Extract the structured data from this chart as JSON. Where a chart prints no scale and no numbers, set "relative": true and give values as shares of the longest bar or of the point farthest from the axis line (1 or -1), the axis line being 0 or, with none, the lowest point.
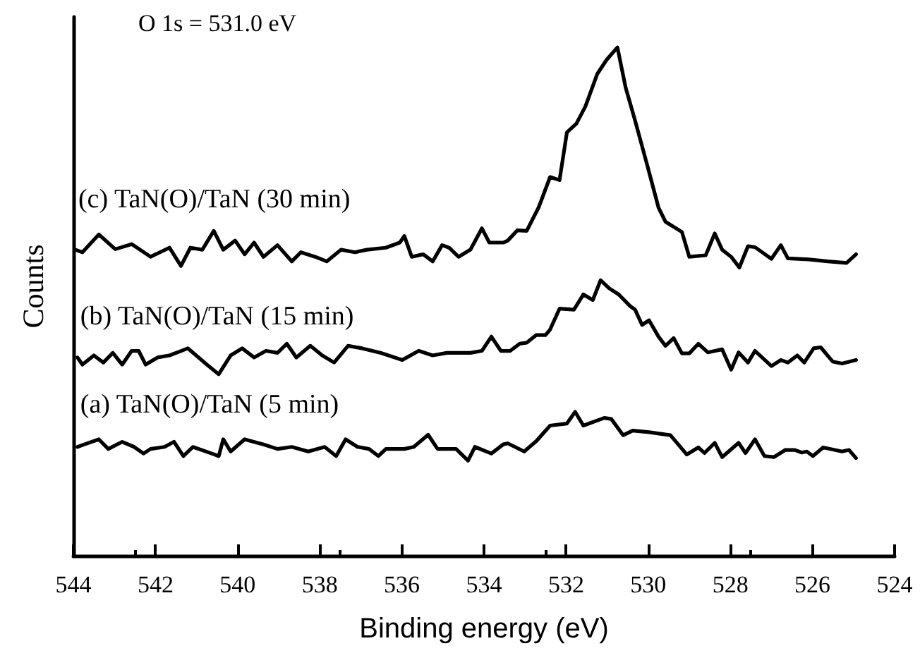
{
  "chart_data": {
    "type": "line",
    "relative": true,
    "xlabel": "Binding energy (eV)",
    "ylabel": "Counts",
    "annotations": [
      "O 1s = 531.0 eV"
    ],
    "xlim": [
      544,
      524
    ],
    "xticks": [
      544,
      542,
      540,
      538,
      536,
      534,
      532,
      530,
      528,
      526,
      524
    ],
    "tick_labels": "x",
    "grid": false,
    "legend": false,
    "marker": "none",
    "line_style": "solid",
    "series": [
      {
        "name": "(c) TaN(O)/TaN (30 min)",
        "color": "#000000",
        "x": [
          543.95,
          543.78,
          543.38,
          542.98,
          542.58,
          542.12,
          541.66,
          541.38,
          541.15,
          540.86,
          540.58,
          540.35,
          540.06,
          539.83,
          539.6,
          539.37,
          539.03,
          538.68,
          538.46,
          538.11,
          537.83,
          537.48,
          537.14,
          536.85,
          536.39,
          536.05,
          535.94,
          535.76,
          535.48,
          535.25,
          535.02,
          534.85,
          534.62,
          534.33,
          534.05,
          533.87,
          533.53,
          533.42,
          533.19,
          532.96,
          532.67,
          532.39,
          532.16,
          531.98,
          531.75,
          531.53,
          531.24,
          531.01,
          530.75,
          530.55,
          530.32,
          530.04,
          529.75,
          529.58,
          529.18,
          529.0,
          528.6,
          528.38,
          528.2,
          527.98,
          527.78,
          527.57,
          527.4,
          527.0,
          526.77,
          526.6,
          526.09,
          525.63,
          525.17,
          524.94
        ],
        "values": [
          0.602,
          0.597,
          0.632,
          0.603,
          0.613,
          0.588,
          0.606,
          0.57,
          0.606,
          0.602,
          0.639,
          0.602,
          0.62,
          0.593,
          0.616,
          0.588,
          0.611,
          0.579,
          0.597,
          0.588,
          0.579,
          0.602,
          0.597,
          0.602,
          0.606,
          0.616,
          0.629,
          0.588,
          0.593,
          0.579,
          0.611,
          0.606,
          0.588,
          0.602,
          0.644,
          0.616,
          0.616,
          0.62,
          0.64,
          0.639,
          0.685,
          0.745,
          0.739,
          0.833,
          0.85,
          0.884,
          0.948,
          0.976,
          1,
          0.921,
          0.856,
          0.773,
          0.685,
          0.657,
          0.637,
          0.588,
          0.591,
          0.634,
          0.602,
          0.588,
          0.567,
          0.609,
          0.607,
          0.584,
          0.611,
          0.585,
          0.583,
          0.579,
          0.576,
          0.593
        ]
      },
      {
        "name": "(b) TaN(O)/TaN (15 min)",
        "color": "#000000",
        "x": [
          543.9,
          543.78,
          543.5,
          543.27,
          543.04,
          542.81,
          542.58,
          542.41,
          542.24,
          541.95,
          541.66,
          541.21,
          540.75,
          540.46,
          540.17,
          539.89,
          539.6,
          539.31,
          539.03,
          538.8,
          538.57,
          538.23,
          537.94,
          537.65,
          537.31,
          536.97,
          536.51,
          535.99,
          535.59,
          535.25,
          534.9,
          534.33,
          534.05,
          533.82,
          533.59,
          533.36,
          533.13,
          532.96,
          532.73,
          532.5,
          532.39,
          532.16,
          531.81,
          531.58,
          531.35,
          531.16,
          530.95,
          530.72,
          530.44,
          530.32,
          530.15,
          529.98,
          529.75,
          529.58,
          529.38,
          529.18,
          529.0,
          528.78,
          528.55,
          528.2,
          527.98,
          527.8,
          527.57,
          527.4,
          527.0,
          526.77,
          526.6,
          526.37,
          526.2,
          525.97,
          525.8,
          525.51,
          525.28,
          524.94
        ],
        "values": [
          0.39,
          0.376,
          0.394,
          0.38,
          0.399,
          0.376,
          0.403,
          0.403,
          0.376,
          0.39,
          0.394,
          0.408,
          0.376,
          0.357,
          0.394,
          0.408,
          0.39,
          0.403,
          0.399,
          0.417,
          0.39,
          0.413,
          0.394,
          0.38,
          0.413,
          0.408,
          0.399,
          0.385,
          0.403,
          0.394,
          0.399,
          0.399,
          0.403,
          0.431,
          0.403,
          0.403,
          0.417,
          0.419,
          0.434,
          0.434,
          0.445,
          0.486,
          0.484,
          0.514,
          0.503,
          0.542,
          0.526,
          0.514,
          0.491,
          0.484,
          0.454,
          0.463,
          0.431,
          0.413,
          0.428,
          0.398,
          0.398,
          0.417,
          0.4,
          0.406,
          0.366,
          0.4,
          0.38,
          0.403,
          0.373,
          0.385,
          0.38,
          0.394,
          0.38,
          0.408,
          0.41,
          0.382,
          0.378,
          0.385
        ]
      },
      {
        "name": "(a) TaN(O)/TaN (5 min)",
        "color": "#000000",
        "x": [
          543.9,
          543.73,
          543.38,
          543.15,
          542.81,
          542.52,
          542.29,
          542.12,
          541.78,
          541.55,
          541.32,
          541.09,
          540.63,
          540.46,
          540.35,
          540.17,
          539.83,
          539.37,
          539.03,
          538.68,
          538.28,
          537.88,
          537.6,
          537.37,
          537.08,
          536.8,
          536.57,
          536.39,
          535.94,
          535.71,
          535.36,
          535.13,
          534.68,
          534.39,
          534.22,
          533.82,
          533.53,
          533.42,
          533.02,
          532.73,
          532.39,
          531.98,
          531.78,
          531.58,
          531.07,
          530.9,
          530.61,
          530.38,
          529.98,
          529.46,
          529.06,
          528.78,
          528.63,
          528.38,
          528.2,
          527.8,
          527.63,
          527.4,
          527.17,
          526.94,
          526.66,
          526.43,
          526.26,
          526.14,
          525.99,
          525.74,
          525.28,
          525.11,
          524.94
        ],
        "values": [
          0.214,
          0.219,
          0.229,
          0.21,
          0.224,
          0.214,
          0.201,
          0.21,
          0.214,
          0.224,
          0.196,
          0.214,
          0.201,
          0.196,
          0.229,
          0.205,
          0.229,
          0.219,
          0.21,
          0.214,
          0.205,
          0.214,
          0.196,
          0.229,
          0.214,
          0.21,
          0.196,
          0.21,
          0.21,
          0.214,
          0.238,
          0.21,
          0.21,
          0.187,
          0.214,
          0.201,
          0.219,
          0.221,
          0.205,
          0.225,
          0.256,
          0.26,
          0.283,
          0.256,
          0.271,
          0.269,
          0.237,
          0.246,
          0.243,
          0.237,
          0.199,
          0.213,
          0.202,
          0.222,
          0.194,
          0.222,
          0.202,
          0.229,
          0.196,
          0.194,
          0.208,
          0.208,
          0.203,
          0.205,
          0.196,
          0.213,
          0.205,
          0.208,
          0.192
        ]
      }
    ]
  }
}
